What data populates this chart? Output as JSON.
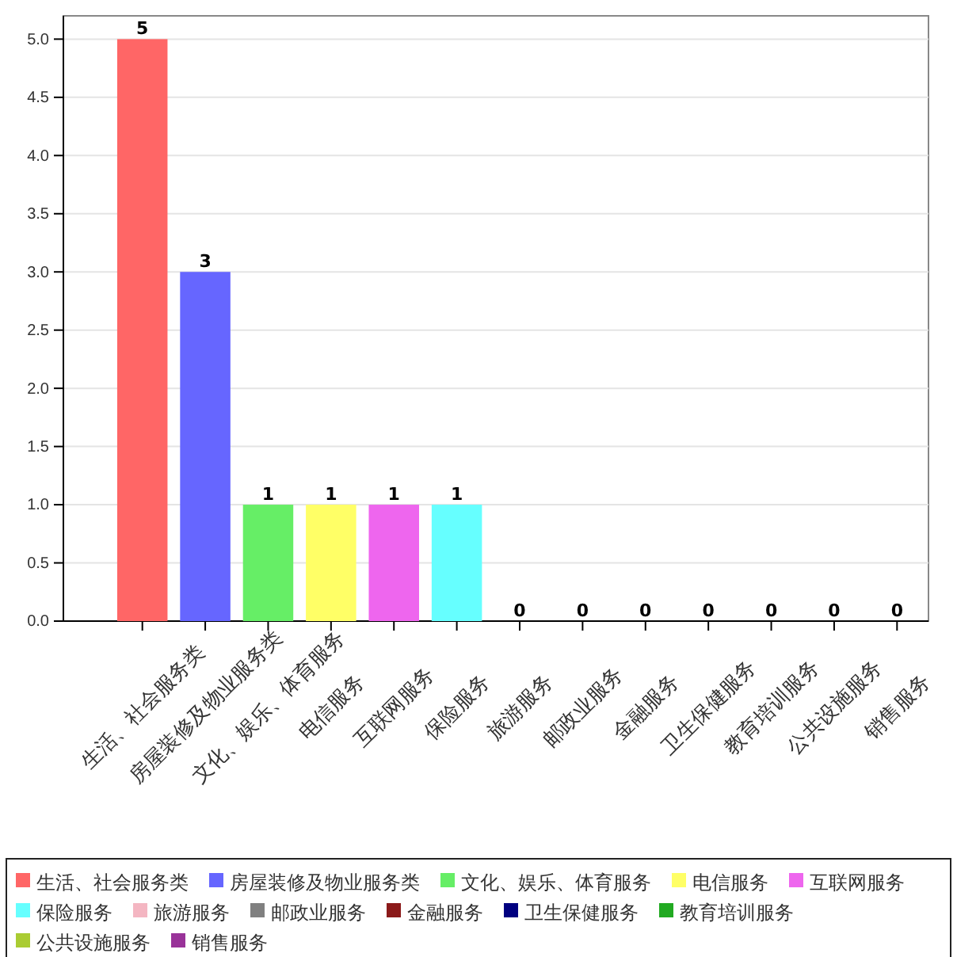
{
  "chart_data": {
    "type": "bar",
    "categories": [
      "生活、社会服务类",
      "房屋装修及物业服务类",
      "文化、娱乐、体育服务",
      "电信服务",
      "互联网服务",
      "保险服务",
      "旅游服务",
      "邮政业服务",
      "金融服务",
      "卫生保健服务",
      "教育培训服务",
      "公共设施服务",
      "销售服务"
    ],
    "series": [
      {
        "name": "生活、社会服务类",
        "color": "#ff6666",
        "values": [
          5,
          null,
          null,
          null,
          null,
          null,
          null,
          null,
          null,
          null,
          null,
          null,
          null
        ]
      },
      {
        "name": "房屋装修及物业服务类",
        "color": "#6666ff",
        "values": [
          null,
          3,
          null,
          null,
          null,
          null,
          null,
          null,
          null,
          null,
          null,
          null,
          null
        ]
      },
      {
        "name": "文化、娱乐、体育服务",
        "color": "#66ee66",
        "values": [
          null,
          null,
          1,
          null,
          null,
          null,
          null,
          null,
          null,
          null,
          null,
          null,
          null
        ]
      },
      {
        "name": "电信服务",
        "color": "#ffff66",
        "values": [
          null,
          null,
          null,
          1,
          null,
          null,
          null,
          null,
          null,
          null,
          null,
          null,
          null
        ]
      },
      {
        "name": "互联网服务",
        "color": "#ee66ee",
        "values": [
          null,
          null,
          null,
          null,
          1,
          null,
          null,
          null,
          null,
          null,
          null,
          null,
          null
        ]
      },
      {
        "name": "保险服务",
        "color": "#66ffff",
        "values": [
          null,
          null,
          null,
          null,
          null,
          1,
          null,
          null,
          null,
          null,
          null,
          null,
          null
        ]
      },
      {
        "name": "旅游服务",
        "color": "#f4b6c2",
        "values": [
          null,
          null,
          null,
          null,
          null,
          null,
          0,
          null,
          null,
          null,
          null,
          null,
          null
        ]
      },
      {
        "name": "邮政业服务",
        "color": "#808080",
        "values": [
          null,
          null,
          null,
          null,
          null,
          null,
          null,
          0,
          null,
          null,
          null,
          null,
          null
        ]
      },
      {
        "name": "金融服务",
        "color": "#8b1a1a",
        "values": [
          null,
          null,
          null,
          null,
          null,
          null,
          null,
          null,
          0,
          null,
          null,
          null,
          null
        ]
      },
      {
        "name": "卫生保健服务",
        "color": "#000080",
        "values": [
          null,
          null,
          null,
          null,
          null,
          null,
          null,
          null,
          null,
          0,
          null,
          null,
          null
        ]
      },
      {
        "name": "教育培训服务",
        "color": "#22aa22",
        "values": [
          null,
          null,
          null,
          null,
          null,
          null,
          null,
          null,
          null,
          null,
          0,
          null,
          null
        ]
      },
      {
        "name": "公共设施服务",
        "color": "#aacc33",
        "values": [
          null,
          null,
          null,
          null,
          null,
          null,
          null,
          null,
          null,
          null,
          null,
          0,
          null
        ]
      },
      {
        "name": "销售服务",
        "color": "#993399",
        "values": [
          null,
          null,
          null,
          null,
          null,
          null,
          null,
          null,
          null,
          null,
          null,
          null,
          0
        ]
      }
    ],
    "ylim": [
      0,
      5.2
    ],
    "yticks": [
      {
        "value": 0,
        "label": "0.0"
      },
      {
        "value": 0.5,
        "label": "0.5"
      },
      {
        "value": 1,
        "label": "1.0"
      },
      {
        "value": 1.5,
        "label": "1.5"
      },
      {
        "value": 2,
        "label": "2.0"
      },
      {
        "value": 2.5,
        "label": "2.5"
      },
      {
        "value": 3,
        "label": "3.0"
      },
      {
        "value": 3.5,
        "label": "3.5"
      },
      {
        "value": 4,
        "label": "4.0"
      },
      {
        "value": 4.5,
        "label": "4.5"
      },
      {
        "value": 5,
        "label": "5.0"
      }
    ],
    "grid": "y",
    "data_labels": true,
    "legend": "bottom"
  }
}
